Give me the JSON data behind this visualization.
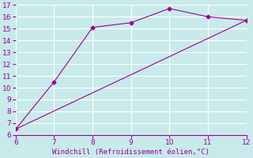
{
  "line1_x": [
    6,
    7,
    8,
    9,
    10,
    11,
    12
  ],
  "line1_y": [
    6.5,
    10.5,
    15.1,
    15.5,
    16.7,
    16.0,
    15.7
  ],
  "line2_x": [
    6,
    12
  ],
  "line2_y": [
    6.5,
    15.7
  ],
  "line_color": "#990099",
  "marker_style": "D",
  "marker_size": 2.5,
  "xlabel": "Windchill (Refroidissement éolien,°C)",
  "xlim": [
    6,
    12
  ],
  "ylim": [
    6,
    17
  ],
  "xticks": [
    6,
    7,
    8,
    9,
    10,
    11,
    12
  ],
  "yticks": [
    6,
    7,
    8,
    9,
    10,
    11,
    12,
    13,
    14,
    15,
    16,
    17
  ],
  "bg_color": "#c8eaea",
  "grid_color": "#ffffff",
  "tick_color": "#990099",
  "label_color": "#990099",
  "font_size": 6.5
}
